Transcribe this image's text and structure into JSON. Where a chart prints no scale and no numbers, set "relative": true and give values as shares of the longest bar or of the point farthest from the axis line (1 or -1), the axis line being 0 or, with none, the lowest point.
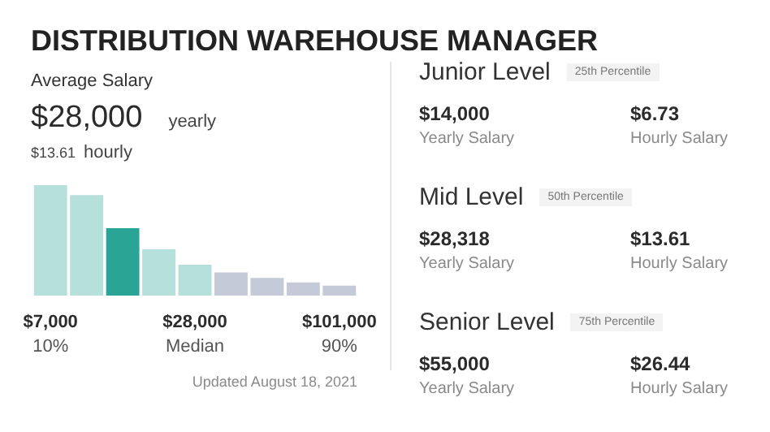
{
  "chart_data": [
    {
      "type": "bar",
      "title": "DISTRIBUTION WAREHOUSE MANAGER",
      "subtitle": "Average Salary",
      "relative": true,
      "categories": [
        "$7,000\n10%",
        null,
        null,
        null,
        "$28,000\nMedian",
        null,
        null,
        null,
        "$101,000\n90%"
      ],
      "values": [
        1,
        0.91,
        0.61,
        0.42,
        0.28,
        0.21,
        0.16,
        0.12,
        0.09
      ],
      "colors": [
        "#b5e0dc",
        "#b5e0dc",
        "#2aa595",
        "#b5e0dc",
        "#b5e0dc",
        "#c5cad8",
        "#c5cad8",
        "#c5cad8",
        "#c5cad8"
      ],
      "annotations": [
        "$28,000",
        "yearly",
        "$13.61",
        "hourly",
        "Updated August 18, 2021"
      ]
    },
    {
      "type": "other",
      "annotations": [
        "Junior Level",
        "25th Percentile",
        "$14,000",
        "Yearly Salary",
        "$6.73",
        "Hourly Salary",
        "Mid Level",
        "50th Percentile",
        "$28,318",
        "Yearly Salary",
        "$13.61",
        "Hourly Salary",
        "Senior Level",
        "75th Percentile",
        "$55,000",
        "Yearly Salary",
        "$26.44",
        "Hourly Salary"
      ]
    }
  ]
}
